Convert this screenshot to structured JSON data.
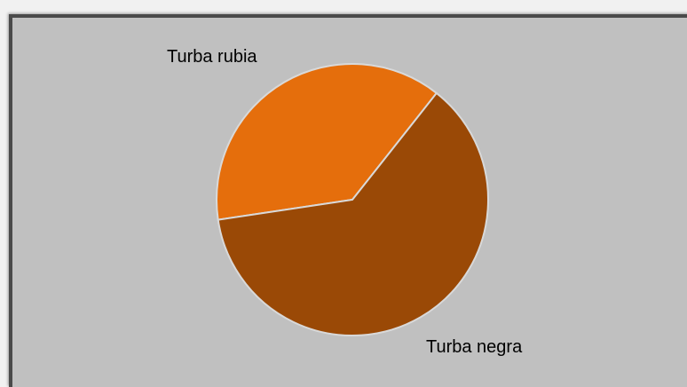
{
  "chart_data": {
    "type": "pie",
    "categories": [
      "Turba rubia",
      "Turba negra"
    ],
    "values": [
      38,
      62
    ],
    "colors": [
      "#e56e0c",
      "#9a4906"
    ],
    "title": "",
    "legend": "none",
    "data_labels": "category-name-outside"
  },
  "colors": {
    "background": "#c0c0c0",
    "frame_border": "#4a4a4a",
    "page": "#f1f1f1",
    "slice_separator": "#d9d9d9"
  }
}
